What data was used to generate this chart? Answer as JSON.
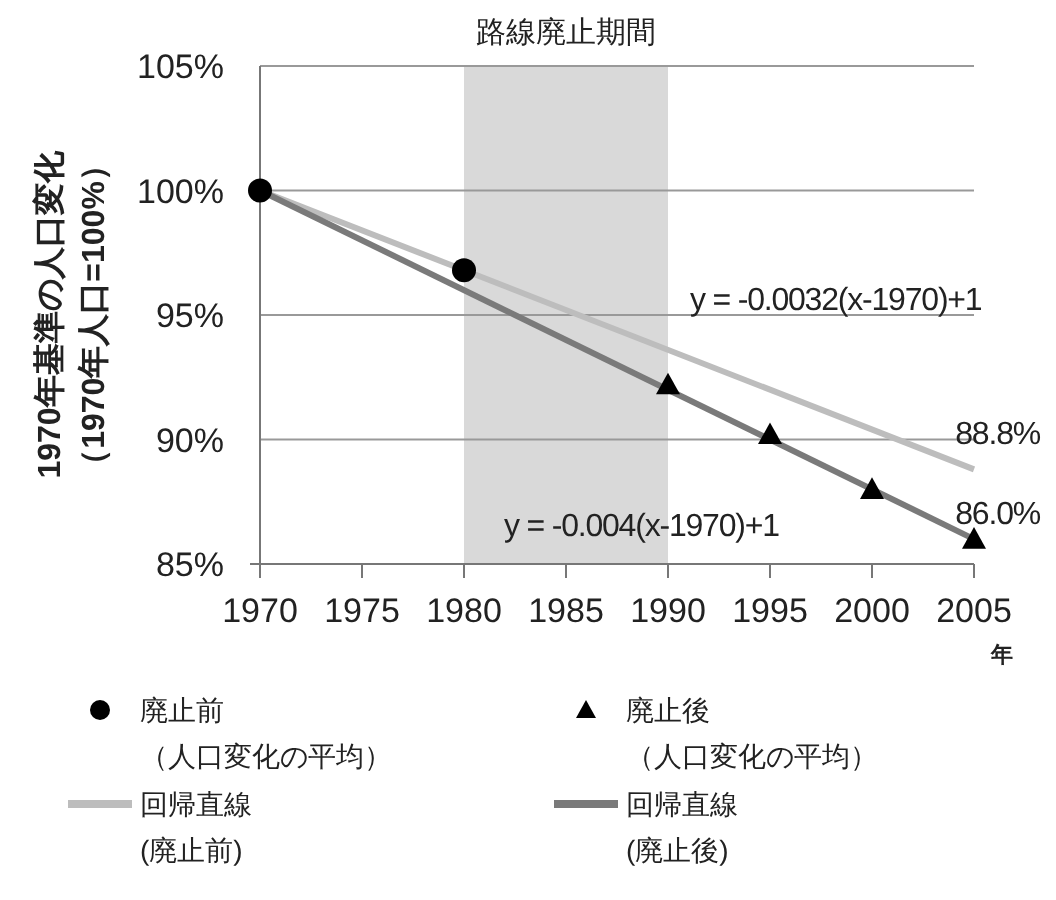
{
  "chart_data": {
    "type": "line",
    "ylabel": "1970年基準の人口変化（1970年人口=100%）",
    "xlabel": "年",
    "xlim": [
      1970,
      2005
    ],
    "xticks": [
      1970,
      1975,
      1980,
      1985,
      1990,
      1995,
      2000,
      2005
    ],
    "ylim": [
      85,
      105
    ],
    "yticks": [
      {
        "value": 85,
        "label": "85%"
      },
      {
        "value": 90,
        "label": "90%"
      },
      {
        "value": 95,
        "label": "95%"
      },
      {
        "value": 100,
        "label": "100%"
      },
      {
        "value": 105,
        "label": "105%"
      }
    ],
    "grid": "y",
    "legend": "bottom",
    "bands": [
      {
        "axis": "x",
        "from": 1980,
        "to": 1990,
        "label": "路線廃止期間",
        "color": "#d9d9d9"
      }
    ],
    "series": [
      {
        "name": "廃止前（人口変化の平均）",
        "type": "scatter",
        "marker": "circle",
        "color": "#000000",
        "x": [
          1970,
          1980
        ],
        "values": [
          100,
          96.8
        ]
      },
      {
        "name": "廃止後（人口変化の平均）",
        "type": "scatter",
        "marker": "triangle",
        "color": "#000000",
        "x": [
          1990,
          1995,
          2000,
          2005
        ],
        "values": [
          92.2,
          90.2,
          88.0,
          86.0
        ]
      },
      {
        "name": "回帰直線(廃止前)",
        "type": "line",
        "color": "#bdbdbd",
        "x": [
          1970,
          2005
        ],
        "values": [
          100,
          88.8
        ]
      },
      {
        "name": "回帰直線(廃止後)",
        "type": "line",
        "color": "#7a7a7a",
        "x": [
          1970,
          2005
        ],
        "values": [
          100,
          86.0
        ]
      }
    ],
    "annotations": [
      "y = -0.0032(x-1970)+1",
      "y = -0.004(x-1970)+1",
      "88.8%",
      "86.0%"
    ]
  }
}
